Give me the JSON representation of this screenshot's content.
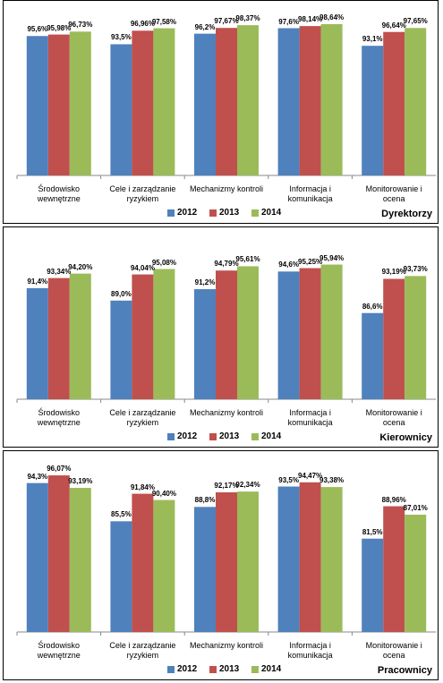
{
  "chart_data": [
    {
      "type": "bar",
      "title": "Dyrektorzy",
      "categories": [
        "Środowisko\nwewnętrzne",
        "Cele i zarządzanie\nryzykiem",
        "Mechanizmy  kontroli",
        "Informacja i\nkomunikacja",
        "Monitorowanie  i\nocena"
      ],
      "series": [
        {
          "name": "2012",
          "color": "#4f81bd",
          "values": [
            95.6,
            93.5,
            96.2,
            97.6,
            93.1
          ],
          "value_labels": [
            "95,6%",
            "93,5%",
            "96,2%",
            "97,6%",
            "93,1%"
          ]
        },
        {
          "name": "2013",
          "color": "#c0504d",
          "values": [
            95.98,
            96.96,
            97.67,
            98.14,
            96.64
          ],
          "value_labels": [
            "95,98%",
            "96,96%",
            "97,67%",
            "98,14%",
            "96,64%"
          ]
        },
        {
          "name": "2014",
          "color": "#9bbb59",
          "values": [
            96.73,
            97.58,
            98.37,
            98.64,
            97.65
          ],
          "value_labels": [
            "96,73%",
            "97,58%",
            "98,37%",
            "98,64%",
            "97,65%"
          ]
        }
      ],
      "ylim": [
        60,
        100
      ]
    },
    {
      "type": "bar",
      "title": "Kierownicy",
      "categories": [
        "Środowisko\nwewnętrzne",
        "Cele i zarządzanie\nryzykiem",
        "Mechanizmy  kontroli",
        "Informacja i\nkomunikacja",
        "Monitorowanie  i\nocena"
      ],
      "series": [
        {
          "name": "2012",
          "color": "#4f81bd",
          "values": [
            91.4,
            89.0,
            91.2,
            94.6,
            86.6
          ],
          "value_labels": [
            "91,4%",
            "89,0%",
            "91,2%",
            "94,6%",
            "86,6%"
          ]
        },
        {
          "name": "2013",
          "color": "#c0504d",
          "values": [
            93.34,
            94.04,
            94.79,
            95.25,
            93.19
          ],
          "value_labels": [
            "93,34%",
            "94,04%",
            "94,79%",
            "95,25%",
            "93,19%"
          ]
        },
        {
          "name": "2014",
          "color": "#9bbb59",
          "values": [
            94.2,
            95.08,
            95.61,
            95.94,
            93.73
          ],
          "value_labels": [
            "94,20%",
            "95,08%",
            "95,61%",
            "95,94%",
            "93,73%"
          ]
        }
      ],
      "ylim": [
        70,
        100
      ]
    },
    {
      "type": "bar",
      "title": "Pracownicy",
      "categories": [
        "Środowisko\nwewnętrzne",
        "Cele i zarządzanie\nryzykiem",
        "Mechanizmy  kontroli",
        "Informacja i\nkomunikacja",
        "Monitorowanie  i\nocena"
      ],
      "series": [
        {
          "name": "2012",
          "color": "#4f81bd",
          "values": [
            94.3,
            85.5,
            88.8,
            93.5,
            81.5
          ],
          "value_labels": [
            "94,3%",
            "85,5%",
            "88,8%",
            "93,5%",
            "81,5%"
          ]
        },
        {
          "name": "2013",
          "color": "#c0504d",
          "values": [
            96.07,
            91.84,
            92.17,
            94.47,
            88.96
          ],
          "value_labels": [
            "96,07%",
            "91,84%",
            "92,17%",
            "94,47%",
            "88,96%"
          ]
        },
        {
          "name": "2014",
          "color": "#9bbb59",
          "values": [
            93.19,
            90.4,
            92.34,
            93.38,
            87.01
          ],
          "value_labels": [
            "93,19%",
            "90,40%",
            "92,34%",
            "93,38%",
            "87,01%"
          ]
        }
      ],
      "ylim": [
        60,
        100
      ]
    }
  ]
}
